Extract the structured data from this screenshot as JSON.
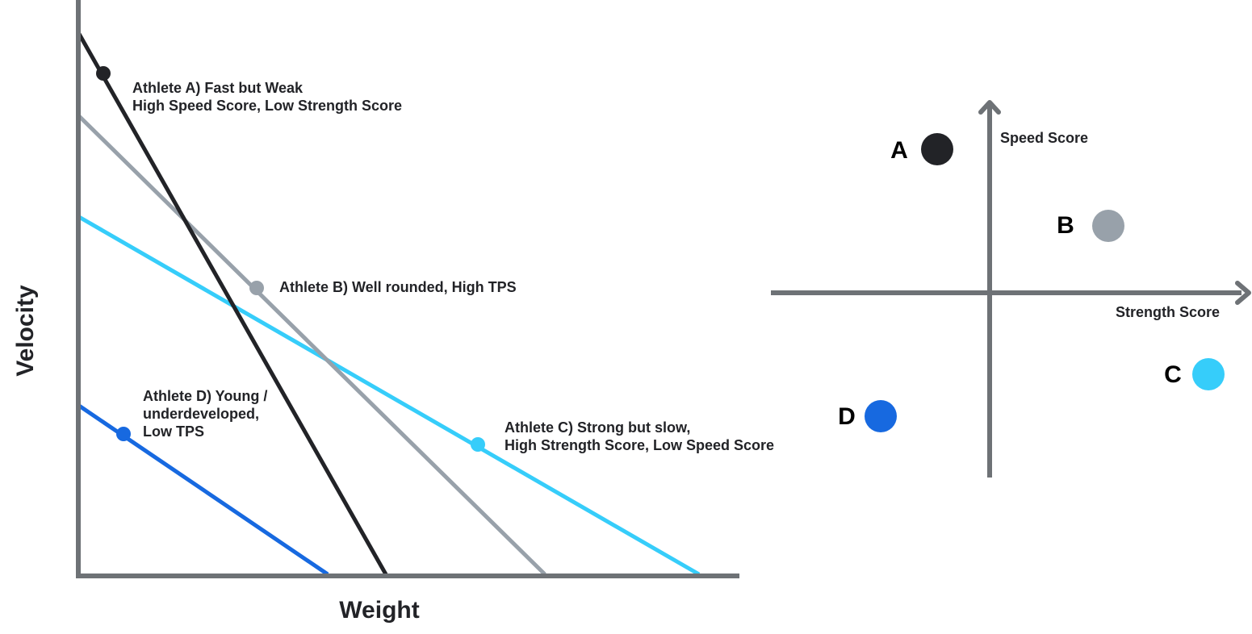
{
  "colors": {
    "axis": "#6e7276",
    "athlete_a": "#222327",
    "athlete_b": "#98a1aa",
    "athlete_c": "#36cdfa",
    "athlete_d": "#1769e0",
    "text": "#222327"
  },
  "left_chart": {
    "x_axis_label": "Weight",
    "y_axis_label": "Velocity",
    "athletes": [
      {
        "id": "a",
        "lines": [
          "Athlete A) Fast but Weak",
          "High Speed Score, Low Strength Score"
        ]
      },
      {
        "id": "b",
        "lines": [
          "Athlete B) Well rounded, High TPS"
        ]
      },
      {
        "id": "c",
        "lines": [
          "Athlete C) Strong but slow,",
          "High Strength Score, Low Speed Score"
        ]
      },
      {
        "id": "d",
        "lines": [
          "Athlete D) Young /",
          "underdeveloped,",
          "Low TPS"
        ]
      }
    ]
  },
  "right_chart": {
    "x_axis_label": "Strength Score",
    "y_axis_label": "Speed Score",
    "points": [
      {
        "id": "a",
        "label": "A"
      },
      {
        "id": "b",
        "label": "B"
      },
      {
        "id": "c",
        "label": "C"
      },
      {
        "id": "d",
        "label": "D"
      }
    ]
  }
}
